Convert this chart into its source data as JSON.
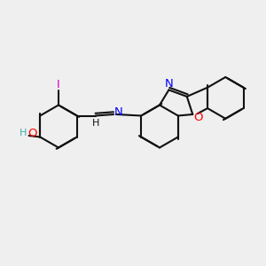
{
  "bg_color": "#efefef",
  "bond_color": "#000000",
  "atom_colors": {
    "N": "#0000ff",
    "O": "#ff0000",
    "I": "#cc00cc",
    "H_label": "#44aaaa",
    "C": "#000000"
  },
  "font_size_atom": 7.5,
  "font_size_label": 7.0,
  "lw": 1.4
}
